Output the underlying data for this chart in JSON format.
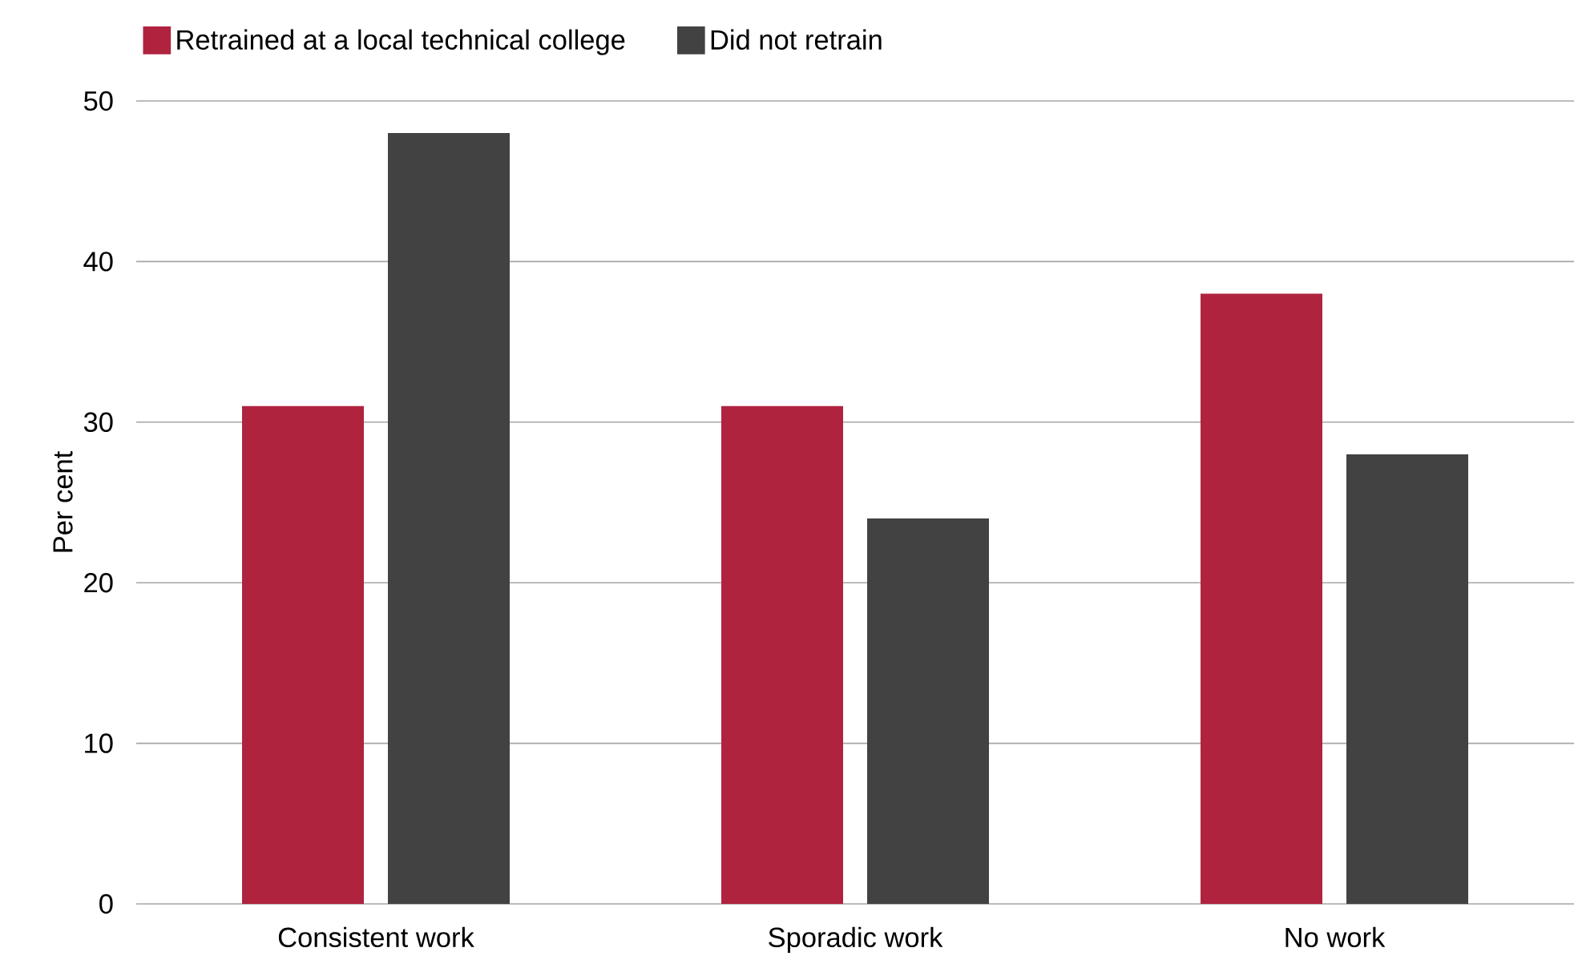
{
  "chart_data": {
    "type": "bar",
    "ylabel": "Per cent",
    "categories": [
      "Consistent work",
      "Sporadic work",
      "No work"
    ],
    "series": [
      {
        "name": "Retrained at a local technical college",
        "color": "#b0233f",
        "values": [
          31,
          31,
          38
        ]
      },
      {
        "name": "Did not retrain",
        "color": "#424242",
        "values": [
          48,
          24,
          28
        ]
      }
    ],
    "ylim": [
      0,
      50
    ],
    "yticks": [
      0,
      10,
      20,
      30,
      40,
      50
    ],
    "grid": "y",
    "legend": "top left"
  }
}
